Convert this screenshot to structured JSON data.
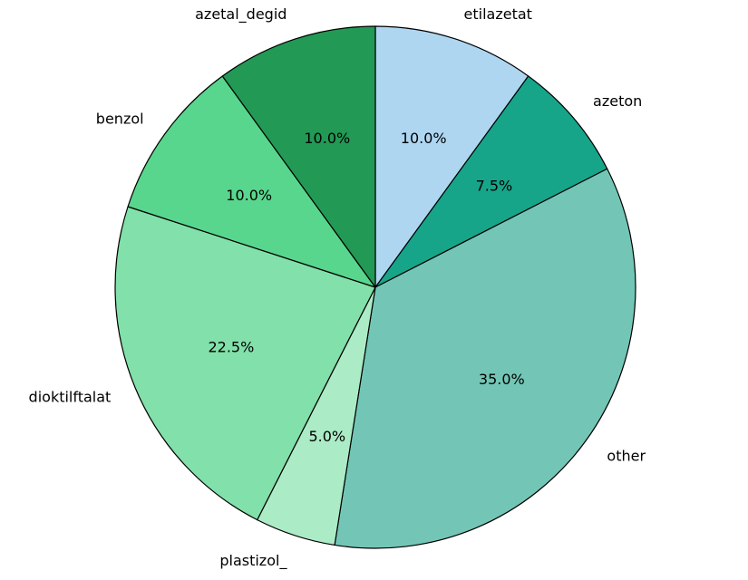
{
  "chart_data": {
    "type": "pie",
    "title": "",
    "slices": [
      {
        "label": "etilazetat",
        "value": 10.0,
        "pct_label": "10.0%",
        "color": "#aed6f1"
      },
      {
        "label": "azeton",
        "value": 7.5,
        "pct_label": "7.5%",
        "color": "#17a589"
      },
      {
        "label": "other",
        "value": 35.0,
        "pct_label": "35.0%",
        "color": "#73c6b6"
      },
      {
        "label": "plastizol_",
        "value": 5.0,
        "pct_label": "5.0%",
        "color": "#abebc6"
      },
      {
        "label": "dioktilftalat",
        "value": 22.5,
        "pct_label": "22.5%",
        "color": "#82e0aa"
      },
      {
        "label": "benzol",
        "value": 10.0,
        "pct_label": "10.0%",
        "color": "#58d68d"
      },
      {
        "label": "azetal_degid",
        "value": 10.0,
        "pct_label": "10.0%",
        "color": "#229954"
      }
    ],
    "start": "top",
    "direction": "clockwise",
    "legend": "none"
  }
}
